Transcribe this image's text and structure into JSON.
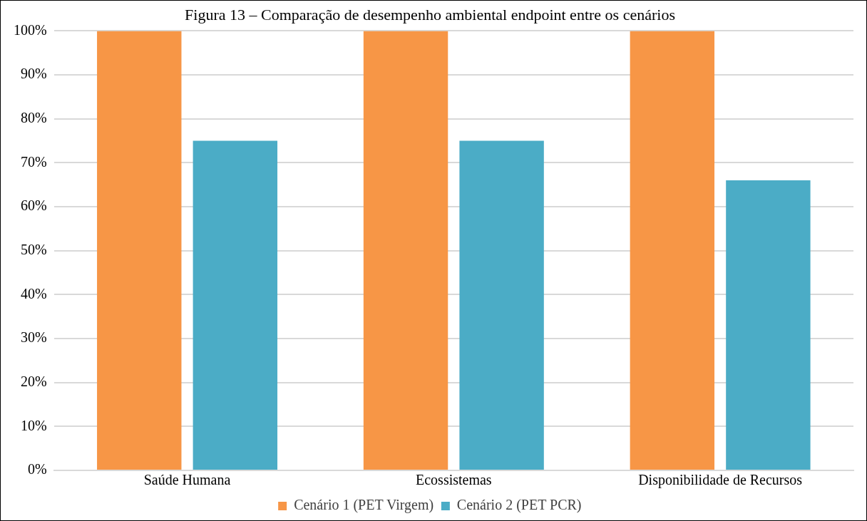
{
  "chart_data": {
    "type": "bar",
    "title": "Figura 13 – Comparação de desempenho ambiental endpoint entre os cenários",
    "categories": [
      "Saúde Humana",
      "Ecossistemas",
      "Disponibilidade de Recursos"
    ],
    "series": [
      {
        "name": "Cenário 1 (PET Virgem)",
        "color": "#f79646",
        "values": [
          100,
          100,
          100
        ]
      },
      {
        "name": "Cenário 2 (PET PCR)",
        "color": "#4bacc6",
        "values": [
          75,
          75,
          66
        ]
      }
    ],
    "ylim": [
      0,
      100
    ],
    "yticks": [
      {
        "value": 0,
        "label": "0%"
      },
      {
        "value": 10,
        "label": "10%"
      },
      {
        "value": 20,
        "label": "20%"
      },
      {
        "value": 30,
        "label": "30%"
      },
      {
        "value": 40,
        "label": "40%"
      },
      {
        "value": 50,
        "label": "50%"
      },
      {
        "value": 60,
        "label": "60%"
      },
      {
        "value": 70,
        "label": "70%"
      },
      {
        "value": 80,
        "label": "80%"
      },
      {
        "value": 90,
        "label": "90%"
      },
      {
        "value": 100,
        "label": "100%"
      }
    ],
    "grid": "y",
    "legend": "bottom"
  }
}
